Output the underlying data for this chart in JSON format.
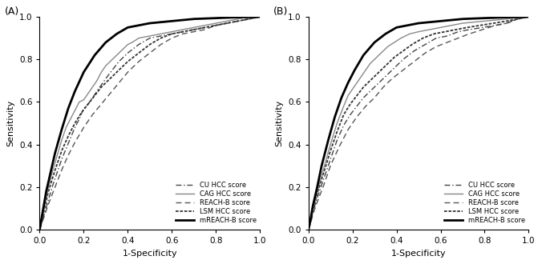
{
  "panel_A_label": "(A)",
  "panel_B_label": "(B)",
  "xlabel": "1-Specificity",
  "ylabel": "Sensitivity",
  "xlim": [
    0.0,
    1.0
  ],
  "ylim": [
    0.0,
    1.0
  ],
  "xticks": [
    0.0,
    0.2,
    0.4,
    0.6,
    0.8,
    1.0
  ],
  "yticks": [
    0.0,
    0.2,
    0.4,
    0.6,
    0.8,
    1.0
  ],
  "background_color": "#ffffff",
  "A_mREACH": {
    "fpr": [
      0.0,
      0.01,
      0.02,
      0.03,
      0.05,
      0.07,
      0.1,
      0.13,
      0.16,
      0.2,
      0.25,
      0.3,
      0.35,
      0.4,
      0.45,
      0.5,
      0.55,
      0.6,
      0.65,
      0.7,
      0.75,
      0.8,
      0.85,
      0.9,
      0.95,
      1.0
    ],
    "tpr": [
      0.0,
      0.06,
      0.12,
      0.18,
      0.27,
      0.36,
      0.47,
      0.57,
      0.65,
      0.74,
      0.82,
      0.88,
      0.92,
      0.95,
      0.96,
      0.97,
      0.975,
      0.98,
      0.985,
      0.99,
      0.992,
      0.994,
      0.996,
      0.998,
      0.999,
      1.0
    ]
  },
  "A_CAG": {
    "fpr": [
      0.0,
      0.01,
      0.02,
      0.04,
      0.06,
      0.08,
      0.1,
      0.12,
      0.14,
      0.16,
      0.18,
      0.2,
      0.22,
      0.24,
      0.26,
      0.28,
      0.3,
      0.32,
      0.34,
      0.36,
      0.38,
      0.4,
      0.42,
      0.45,
      0.5,
      0.55,
      0.6,
      0.65,
      0.7,
      0.75,
      0.8,
      0.85,
      0.9,
      0.95,
      1.0
    ],
    "tpr": [
      0.0,
      0.04,
      0.1,
      0.2,
      0.28,
      0.35,
      0.42,
      0.48,
      0.52,
      0.56,
      0.6,
      0.61,
      0.64,
      0.67,
      0.7,
      0.74,
      0.77,
      0.79,
      0.81,
      0.83,
      0.85,
      0.87,
      0.88,
      0.9,
      0.91,
      0.92,
      0.93,
      0.94,
      0.95,
      0.96,
      0.97,
      0.98,
      0.99,
      1.0,
      1.0
    ]
  },
  "A_LSM": {
    "fpr": [
      0.0,
      0.01,
      0.02,
      0.04,
      0.07,
      0.1,
      0.13,
      0.16,
      0.19,
      0.22,
      0.25,
      0.28,
      0.32,
      0.36,
      0.4,
      0.45,
      0.5,
      0.55,
      0.6,
      0.65,
      0.7,
      0.75,
      0.8,
      0.85,
      0.9,
      0.95,
      1.0
    ],
    "tpr": [
      0.0,
      0.04,
      0.09,
      0.18,
      0.28,
      0.37,
      0.44,
      0.5,
      0.55,
      0.59,
      0.63,
      0.67,
      0.71,
      0.75,
      0.79,
      0.83,
      0.87,
      0.9,
      0.92,
      0.93,
      0.94,
      0.95,
      0.96,
      0.97,
      0.98,
      0.99,
      1.0
    ]
  },
  "A_CU": {
    "fpr": [
      0.0,
      0.01,
      0.02,
      0.04,
      0.06,
      0.08,
      0.1,
      0.12,
      0.14,
      0.16,
      0.18,
      0.2,
      0.22,
      0.24,
      0.26,
      0.28,
      0.3,
      0.33,
      0.36,
      0.4,
      0.45,
      0.5,
      0.55,
      0.6,
      0.65,
      0.7,
      0.75,
      0.8,
      0.85,
      0.9,
      0.95,
      1.0
    ],
    "tpr": [
      0.0,
      0.03,
      0.07,
      0.14,
      0.21,
      0.27,
      0.33,
      0.38,
      0.43,
      0.48,
      0.52,
      0.57,
      0.59,
      0.62,
      0.65,
      0.68,
      0.71,
      0.75,
      0.79,
      0.83,
      0.87,
      0.9,
      0.91,
      0.92,
      0.93,
      0.94,
      0.95,
      0.96,
      0.97,
      0.98,
      0.99,
      1.0
    ]
  },
  "A_REACH": {
    "fpr": [
      0.0,
      0.01,
      0.02,
      0.04,
      0.07,
      0.1,
      0.13,
      0.16,
      0.2,
      0.24,
      0.28,
      0.32,
      0.36,
      0.4,
      0.45,
      0.5,
      0.55,
      0.6,
      0.65,
      0.7,
      0.75,
      0.8,
      0.85,
      0.9,
      0.95,
      1.0
    ],
    "tpr": [
      0.0,
      0.03,
      0.06,
      0.12,
      0.2,
      0.28,
      0.35,
      0.41,
      0.48,
      0.54,
      0.59,
      0.64,
      0.69,
      0.74,
      0.79,
      0.83,
      0.87,
      0.9,
      0.92,
      0.93,
      0.94,
      0.96,
      0.97,
      0.98,
      0.99,
      1.0
    ]
  },
  "B_mREACH": {
    "fpr": [
      0.0,
      0.01,
      0.02,
      0.04,
      0.06,
      0.09,
      0.12,
      0.15,
      0.18,
      0.21,
      0.25,
      0.3,
      0.35,
      0.4,
      0.45,
      0.5,
      0.55,
      0.6,
      0.65,
      0.7,
      0.75,
      0.8,
      0.85,
      0.9,
      0.95,
      1.0
    ],
    "tpr": [
      0.0,
      0.05,
      0.11,
      0.2,
      0.3,
      0.42,
      0.53,
      0.62,
      0.69,
      0.75,
      0.82,
      0.88,
      0.92,
      0.95,
      0.96,
      0.97,
      0.975,
      0.98,
      0.985,
      0.99,
      0.992,
      0.994,
      0.996,
      0.998,
      0.999,
      1.0
    ]
  },
  "B_CAG": {
    "fpr": [
      0.0,
      0.01,
      0.02,
      0.04,
      0.07,
      0.1,
      0.13,
      0.16,
      0.18,
      0.2,
      0.22,
      0.24,
      0.26,
      0.28,
      0.3,
      0.33,
      0.36,
      0.39,
      0.42,
      0.46,
      0.5,
      0.55,
      0.6,
      0.65,
      0.7,
      0.75,
      0.8,
      0.85,
      0.9,
      0.95,
      1.0
    ],
    "tpr": [
      0.0,
      0.04,
      0.09,
      0.18,
      0.29,
      0.4,
      0.5,
      0.58,
      0.63,
      0.66,
      0.69,
      0.72,
      0.75,
      0.78,
      0.8,
      0.83,
      0.86,
      0.88,
      0.9,
      0.92,
      0.93,
      0.94,
      0.95,
      0.96,
      0.97,
      0.975,
      0.98,
      0.985,
      0.99,
      0.995,
      1.0
    ]
  },
  "B_LSM": {
    "fpr": [
      0.0,
      0.01,
      0.02,
      0.04,
      0.07,
      0.1,
      0.13,
      0.16,
      0.19,
      0.22,
      0.25,
      0.28,
      0.31,
      0.35,
      0.39,
      0.43,
      0.47,
      0.52,
      0.57,
      0.62,
      0.67,
      0.72,
      0.78,
      0.84,
      0.9,
      0.95,
      1.0
    ],
    "tpr": [
      0.0,
      0.04,
      0.09,
      0.17,
      0.27,
      0.37,
      0.46,
      0.54,
      0.59,
      0.63,
      0.67,
      0.7,
      0.73,
      0.77,
      0.81,
      0.84,
      0.87,
      0.9,
      0.92,
      0.93,
      0.94,
      0.95,
      0.96,
      0.97,
      0.98,
      0.99,
      1.0
    ]
  },
  "B_CU": {
    "fpr": [
      0.0,
      0.01,
      0.02,
      0.04,
      0.07,
      0.1,
      0.13,
      0.16,
      0.19,
      0.22,
      0.25,
      0.28,
      0.31,
      0.35,
      0.39,
      0.43,
      0.48,
      0.53,
      0.58,
      0.63,
      0.68,
      0.73,
      0.79,
      0.85,
      0.9,
      0.95,
      1.0
    ],
    "tpr": [
      0.0,
      0.03,
      0.08,
      0.15,
      0.24,
      0.33,
      0.42,
      0.49,
      0.54,
      0.58,
      0.62,
      0.65,
      0.68,
      0.72,
      0.76,
      0.8,
      0.84,
      0.87,
      0.9,
      0.91,
      0.93,
      0.94,
      0.95,
      0.96,
      0.97,
      0.99,
      1.0
    ]
  },
  "B_REACH": {
    "fpr": [
      0.0,
      0.01,
      0.02,
      0.04,
      0.07,
      0.1,
      0.14,
      0.18,
      0.22,
      0.26,
      0.3,
      0.34,
      0.38,
      0.43,
      0.48,
      0.53,
      0.58,
      0.63,
      0.68,
      0.73,
      0.79,
      0.85,
      0.9,
      0.95,
      1.0
    ],
    "tpr": [
      0.0,
      0.03,
      0.07,
      0.13,
      0.21,
      0.3,
      0.39,
      0.47,
      0.53,
      0.58,
      0.62,
      0.67,
      0.71,
      0.75,
      0.79,
      0.83,
      0.86,
      0.88,
      0.9,
      0.92,
      0.94,
      0.96,
      0.97,
      0.99,
      1.0
    ]
  }
}
